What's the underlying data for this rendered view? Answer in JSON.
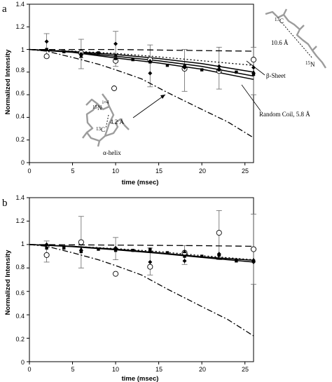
{
  "chart_data": [
    {
      "type": "scatter",
      "panel_label": "a",
      "xlabel": "time (msec)",
      "ylabel": "Normalized Intensity",
      "xlim": [
        0,
        26
      ],
      "ylim": [
        0,
        1.4
      ],
      "x_ticks": [
        "0",
        "5",
        "10",
        "15",
        "20",
        "25"
      ],
      "y_ticks": [
        "0",
        "0.2",
        "0.4",
        "0.6",
        "0.8",
        "1",
        "1.2",
        "1.4"
      ],
      "grid": false,
      "curves": [
        {
          "style": "dashed",
          "points": [
            [
              0,
              1.0
            ],
            [
              5,
              1.0
            ],
            [
              10,
              1.0
            ],
            [
              15,
              0.995
            ],
            [
              20,
              0.99
            ],
            [
              26,
              0.985
            ]
          ]
        },
        {
          "style": "dotted",
          "points": [
            [
              0,
              1.0
            ],
            [
              5,
              0.985
            ],
            [
              10,
              0.965
            ],
            [
              15,
              0.935
            ],
            [
              20,
              0.9
            ],
            [
              26,
              0.86
            ]
          ]
        },
        {
          "style": "solid",
          "points": [
            [
              0,
              1.0
            ],
            [
              5,
              0.982
            ],
            [
              10,
              0.955
            ],
            [
              15,
              0.92
            ],
            [
              20,
              0.875
            ],
            [
              26,
              0.8
            ]
          ]
        },
        {
          "style": "solid",
          "points": [
            [
              0,
              1.0
            ],
            [
              5,
              0.978
            ],
            [
              10,
              0.94
            ],
            [
              15,
              0.9
            ],
            [
              20,
              0.85
            ],
            [
              26,
              0.765
            ]
          ]
        },
        {
          "style": "solid",
          "points": [
            [
              0,
              1.0
            ],
            [
              5,
              0.975
            ],
            [
              10,
              0.925
            ],
            [
              15,
              0.88
            ],
            [
              20,
              0.825
            ],
            [
              26,
              0.735
            ]
          ]
        },
        {
          "style": "dash-dot",
          "points": [
            [
              0,
              1.0
            ],
            [
              2,
              0.985
            ],
            [
              5,
              0.93
            ],
            [
              8,
              0.87
            ],
            [
              10,
              0.82
            ],
            [
              13,
              0.74
            ],
            [
              16,
              0.62
            ],
            [
              20,
              0.47
            ],
            [
              23,
              0.36
            ],
            [
              26,
              0.22
            ]
          ]
        }
      ],
      "markers": [
        {
          "shape": "circle-open",
          "points": [
            [
              2,
              0.94
            ],
            [
              6,
              0.97
            ],
            [
              10,
              0.9
            ],
            [
              14,
              0.91
            ],
            [
              18,
              0.83
            ],
            [
              22,
              0.81
            ],
            [
              26,
              0.91
            ]
          ]
        },
        {
          "shape": "diamond",
          "points": [
            [
              2,
              1.07
            ],
            [
              6,
              0.95
            ],
            [
              10,
              1.05
            ],
            [
              14,
              0.79
            ],
            [
              18,
              0.84
            ],
            [
              22,
              0.85
            ],
            [
              26,
              0.84
            ]
          ]
        },
        {
          "shape": "square",
          "points": [
            [
              2,
              1.0
            ],
            [
              4,
              0.98
            ],
            [
              6,
              0.96
            ],
            [
              8,
              0.97
            ],
            [
              10,
              0.92
            ],
            [
              12,
              0.91
            ],
            [
              14,
              0.89
            ],
            [
              16,
              0.86
            ],
            [
              18,
              0.85
            ],
            [
              20,
              0.82
            ],
            [
              22,
              0.82
            ],
            [
              24,
              0.8
            ],
            [
              26,
              0.78
            ]
          ]
        },
        {
          "shape": "triangle",
          "points": [
            [
              6,
              0.94
            ],
            [
              10,
              0.95
            ],
            [
              14,
              0.9
            ],
            [
              18,
              0.86
            ],
            [
              22,
              0.83
            ],
            [
              26,
              0.8
            ]
          ]
        }
      ],
      "error_bars": [
        {
          "x": 2,
          "low": 0.93,
          "high": 1.14
        },
        {
          "x": 6,
          "low": 0.83,
          "high": 1.09
        },
        {
          "x": 10,
          "low": 0.85,
          "high": 1.16
        },
        {
          "x": 14,
          "low": 0.67,
          "high": 1.04
        },
        {
          "x": 18,
          "low": 0.63,
          "high": 1.0
        },
        {
          "x": 22,
          "low": 0.65,
          "high": 1.02
        },
        {
          "x": 26,
          "low": 0.6,
          "high": 1.02
        }
      ],
      "annotations": {
        "beta_sheet": "β-Sheet",
        "random_coil": "Random Coil, 5.8 Å",
        "alpha_helix": "α-helix",
        "dist_helix": "4.2 Å",
        "dist_sheet": "10.6 Å",
        "c13_main": "C",
        "c13_sup": "13",
        "n15_main": "N",
        "n15_sup": "15",
        "i4": "i+4"
      }
    },
    {
      "type": "scatter",
      "panel_label": "b",
      "xlabel": "time (msec)",
      "ylabel": "Normalized Intensity",
      "xlim": [
        0,
        26
      ],
      "ylim": [
        0,
        1.4
      ],
      "x_ticks": [
        "0",
        "5",
        "10",
        "15",
        "20",
        "25"
      ],
      "y_ticks": [
        "0",
        "0.2",
        "0.4",
        "0.6",
        "0.8",
        "1",
        "1.2",
        "1.4"
      ],
      "grid": false,
      "curves": [
        {
          "style": "dashed",
          "points": [
            [
              0,
              1.0
            ],
            [
              10,
              0.995
            ],
            [
              20,
              0.99
            ],
            [
              26,
              0.985
            ]
          ]
        },
        {
          "style": "dotted",
          "points": [
            [
              0,
              1.0
            ],
            [
              5,
              0.985
            ],
            [
              10,
              0.965
            ],
            [
              15,
              0.94
            ],
            [
              20,
              0.905
            ],
            [
              26,
              0.87
            ]
          ]
        },
        {
          "style": "solid",
          "points": [
            [
              0,
              1.0
            ],
            [
              5,
              0.985
            ],
            [
              10,
              0.96
            ],
            [
              15,
              0.93
            ],
            [
              20,
              0.895
            ],
            [
              26,
              0.865
            ]
          ]
        },
        {
          "style": "solid",
          "points": [
            [
              0,
              1.0
            ],
            [
              5,
              0.982
            ],
            [
              10,
              0.955
            ],
            [
              15,
              0.925
            ],
            [
              20,
              0.89
            ],
            [
              26,
              0.85
            ]
          ]
        },
        {
          "style": "dash-dot",
          "points": [
            [
              0,
              1.0
            ],
            [
              2,
              0.985
            ],
            [
              5,
              0.93
            ],
            [
              8,
              0.87
            ],
            [
              10,
              0.82
            ],
            [
              13,
              0.74
            ],
            [
              16,
              0.62
            ],
            [
              20,
              0.47
            ],
            [
              23,
              0.36
            ],
            [
              26,
              0.22
            ]
          ]
        }
      ],
      "markers": [
        {
          "shape": "circle-open",
          "points": [
            [
              2,
              0.91
            ],
            [
              6,
              1.02
            ],
            [
              10,
              0.75
            ],
            [
              14,
              0.81
            ],
            [
              18,
              0.93
            ],
            [
              22,
              1.1
            ],
            [
              26,
              0.96
            ]
          ]
        },
        {
          "shape": "diamond",
          "points": [
            [
              2,
              1.0
            ],
            [
              6,
              0.95
            ],
            [
              10,
              0.97
            ],
            [
              14,
              0.85
            ],
            [
              18,
              0.86
            ],
            [
              22,
              0.92
            ],
            [
              26,
              0.85
            ]
          ]
        },
        {
          "shape": "square",
          "points": [
            [
              2,
              0.97
            ],
            [
              4,
              0.97
            ],
            [
              6,
              0.94
            ],
            [
              8,
              0.96
            ],
            [
              10,
              0.95
            ],
            [
              12,
              0.95
            ],
            [
              14,
              0.96
            ],
            [
              16,
              0.93
            ],
            [
              18,
              0.9
            ],
            [
              20,
              0.9
            ],
            [
              22,
              0.91
            ],
            [
              24,
              0.86
            ],
            [
              26,
              0.86
            ]
          ]
        },
        {
          "shape": "triangle",
          "points": [
            [
              6,
              0.96
            ],
            [
              10,
              0.97
            ],
            [
              14,
              0.95
            ],
            [
              18,
              0.94
            ],
            [
              22,
              0.92
            ],
            [
              26,
              0.87
            ]
          ]
        }
      ],
      "error_bars": [
        {
          "x": 2,
          "low": 0.85,
          "high": 1.03
        },
        {
          "x": 6,
          "low": 0.8,
          "high": 1.24
        },
        {
          "x": 10,
          "low": 0.87,
          "high": 1.06
        },
        {
          "x": 14,
          "low": 0.74,
          "high": 0.97
        },
        {
          "x": 18,
          "low": 0.83,
          "high": 0.99
        },
        {
          "x": 22,
          "low": 0.87,
          "high": 1.29
        },
        {
          "x": 26,
          "low": 0.66,
          "high": 1.26
        }
      ]
    }
  ]
}
